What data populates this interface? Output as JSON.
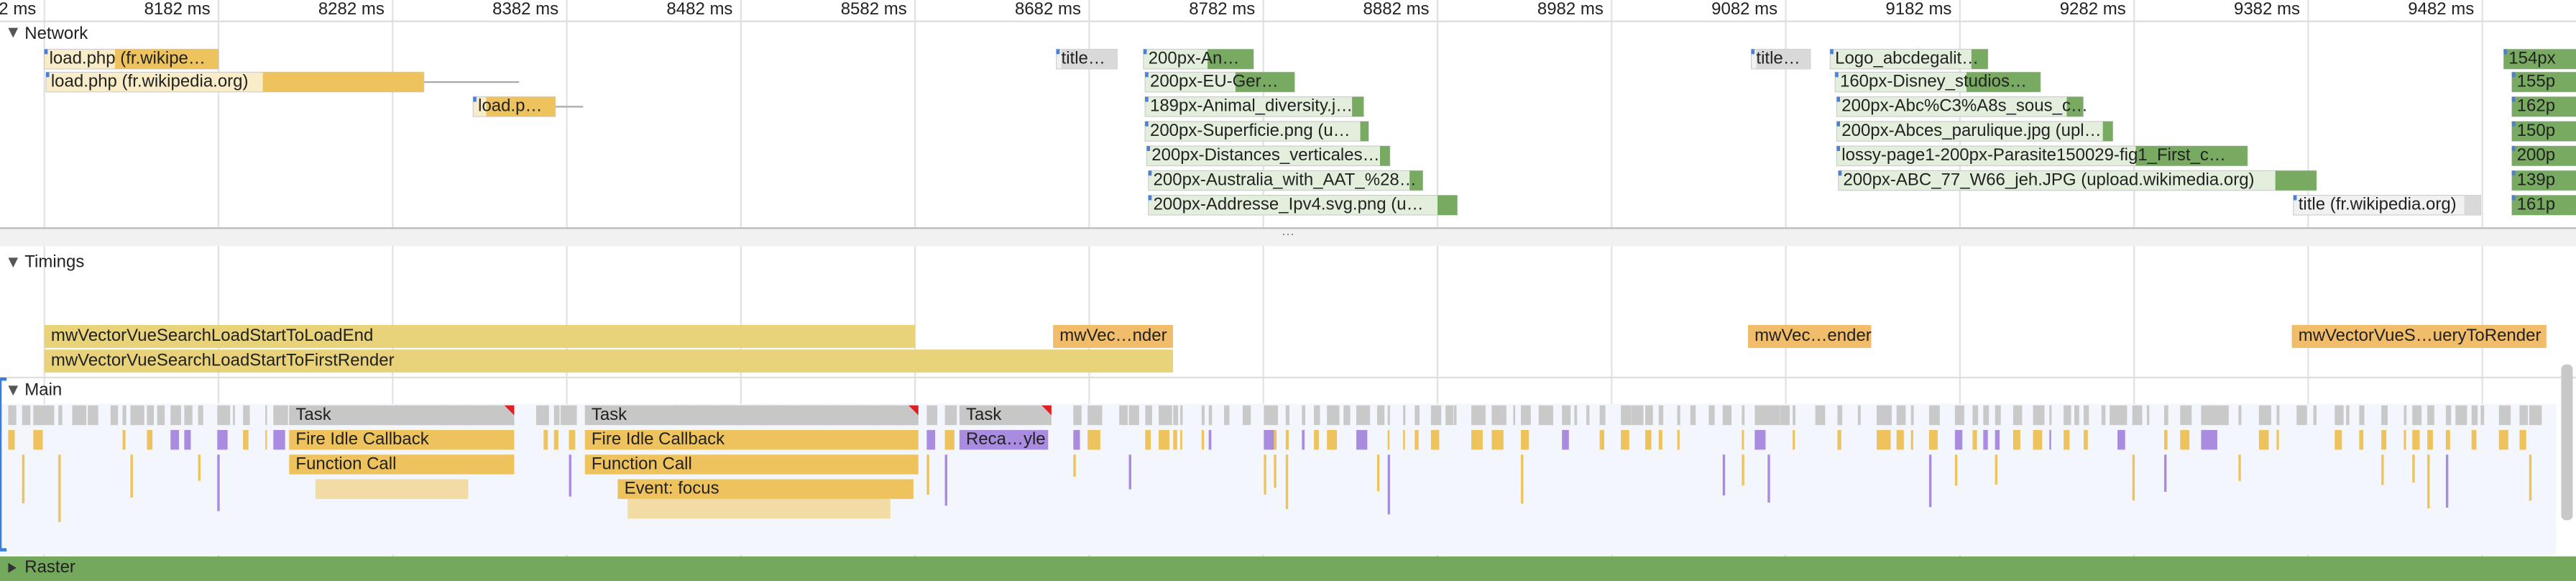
{
  "ruler": [
    "2 ms",
    "8182 ms",
    "8282 ms",
    "8382 ms",
    "8482 ms",
    "8582 ms",
    "8682 ms",
    "8782 ms",
    "8882 ms",
    "8982 ms",
    "9082 ms",
    "9182 ms",
    "9282 ms",
    "9382 ms",
    "9482 ms"
  ],
  "sections": {
    "network": "Network",
    "timings": "Timings",
    "main": "Main",
    "raster": "Raster"
  },
  "network": [
    "load.php (fr.wikipe…",
    "load.php (fr.wikipedia.org)",
    "load.p…",
    "title…",
    "title…",
    "Logo_abcdegalit…",
    "200px-An…",
    "200px-EU-Ger…",
    "189px-Animal_diversity.j…",
    "200px-Superficie.png (u…",
    "200px-Distances_verticales…",
    "200px-Australia_with_AAT_%28…",
    "200px-Addresse_Ipv4.svg.png (u…",
    "160px-Disney_studios…",
    "200px-Abc%C3%A8s_sous_c…",
    "200px-Abces_parulique.jpg (upl…",
    "lossy-page1-200px-Parasite150029-fig1_First_c…",
    "200px-ABC_77_W66_jeh.JPG (upload.wikimedia.org)",
    "title (fr.wikipedia.org)",
    "154px",
    "155p",
    "162p",
    "150p",
    "200p",
    "139p",
    "161p"
  ],
  "timings": [
    "mwVectorVueSearchLoadStartToLoadEnd",
    "mwVectorVueSearchLoadStartToFirstRender",
    "mwVec…nder",
    "mwVec…ender",
    "mwVectorVueS…ueryToRender"
  ],
  "main": [
    "Task",
    "Task",
    "Task",
    "Fire Idle Callback",
    "Fire Idle Callback",
    "Reca…yle",
    "Function Call",
    "Function Call",
    "Event: focus"
  ]
}
